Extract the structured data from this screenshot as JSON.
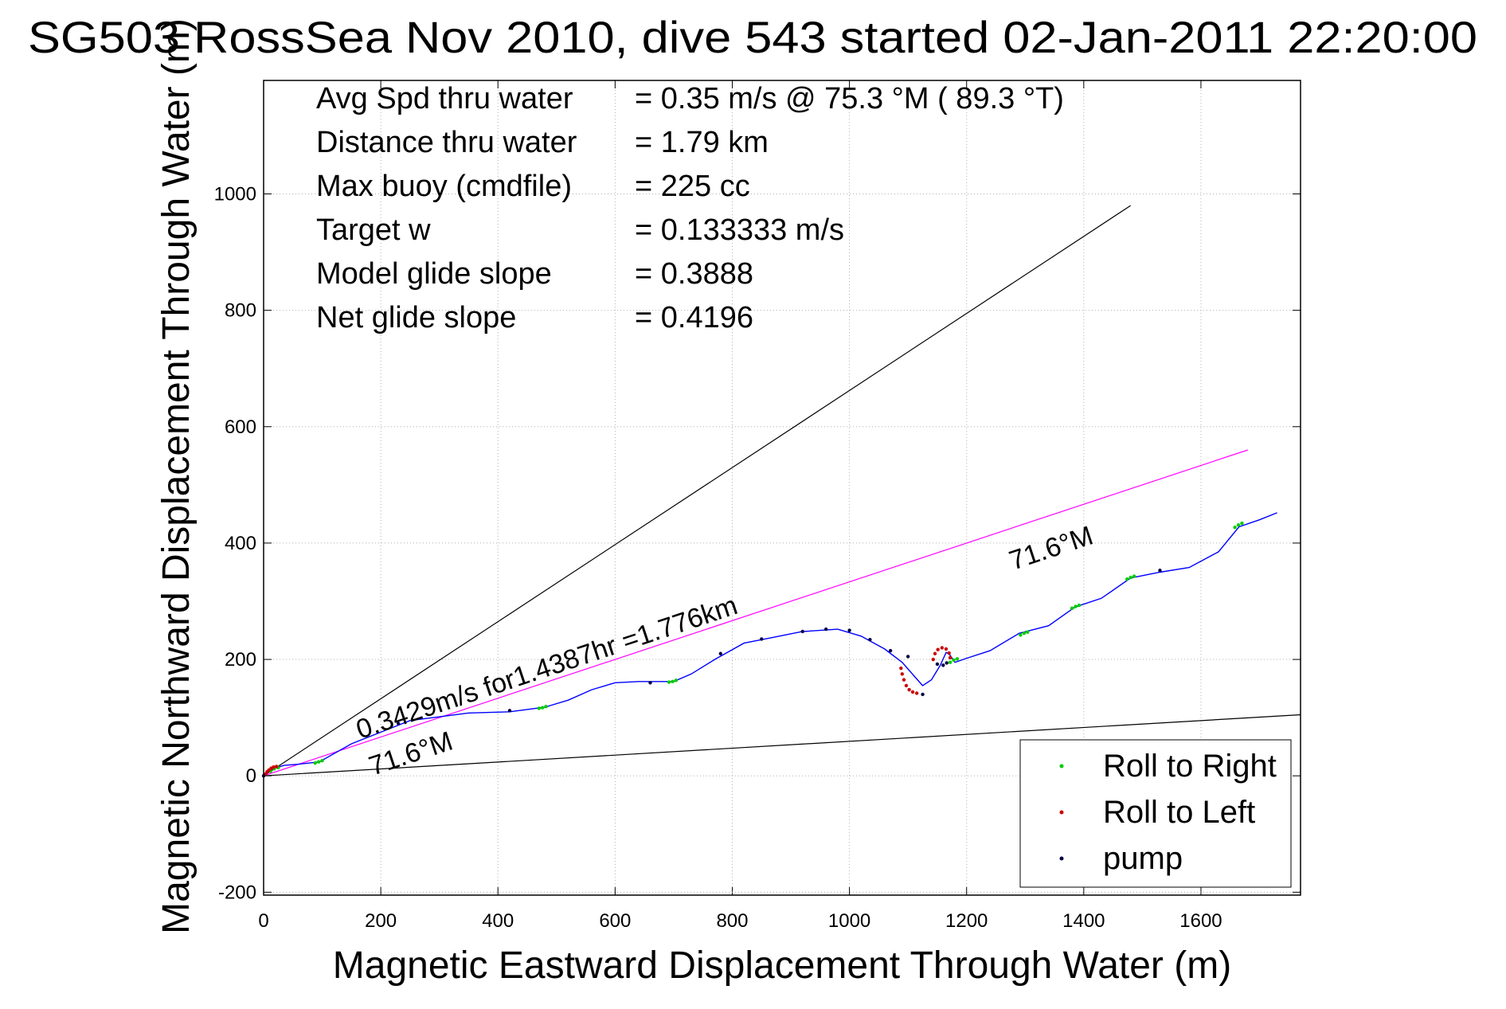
{
  "chart_data": {
    "type": "line",
    "title": "SG503 RossSea Nov 2010, dive 543 started 02-Jan-2011 22:20:00",
    "xlabel": "Magnetic Eastward Displacement Through Water (m)",
    "ylabel": "Magnetic Northward Displacement Through Water (m)",
    "xlim": [
      0,
      1770
    ],
    "ylim": [
      -205,
      1195
    ],
    "xticks": [
      0,
      200,
      400,
      600,
      800,
      1000,
      1200,
      1400,
      1600
    ],
    "yticks": [
      -200,
      0,
      200,
      400,
      600,
      800,
      1000
    ],
    "grid": true,
    "stats": [
      {
        "label": "Avg Spd thru water",
        "value": "=  0.35 m/s @  75.3 °M ( 89.3 °T)"
      },
      {
        "label": "Distance thru water",
        "value": "=  1.79 km"
      },
      {
        "label": "Max buoy (cmdfile)",
        "value": "= 225 cc"
      },
      {
        "label": "Target w",
        "value": "= 0.133333 m/s"
      },
      {
        "label": "Model glide slope",
        "value": "= 0.3888"
      },
      {
        "label": "Net glide slope",
        "value": "= 0.4196"
      }
    ],
    "annotations": {
      "net_line": "0.3429m/s for1.4387hr =1.776km",
      "lower_heading": "71.6°M",
      "upper_heading": "71.6°M"
    },
    "reference_lines": [
      {
        "x": [
          0,
          1480
        ],
        "y": [
          0,
          980
        ],
        "color": "#000000"
      },
      {
        "x": [
          0,
          1770
        ],
        "y": [
          0,
          105
        ],
        "color": "#000000"
      },
      {
        "x": [
          0,
          1680
        ],
        "y": [
          0,
          560
        ],
        "color": "#ff00ff"
      }
    ],
    "track": {
      "color": "#0000ff",
      "x": [
        0,
        15,
        35,
        60,
        95,
        150,
        250,
        350,
        420,
        480,
        520,
        560,
        600,
        640,
        700,
        730,
        770,
        820,
        870,
        920,
        980,
        1020,
        1060,
        1090,
        1110,
        1125,
        1140,
        1155,
        1165,
        1170,
        1180,
        1200,
        1240,
        1290,
        1340,
        1385,
        1430,
        1480,
        1530,
        1580,
        1630,
        1665,
        1700,
        1730
      ],
      "y": [
        0,
        12,
        18,
        20,
        24,
        55,
        95,
        108,
        110,
        118,
        130,
        148,
        160,
        162,
        162,
        175,
        200,
        228,
        238,
        248,
        252,
        240,
        218,
        195,
        172,
        155,
        165,
        190,
        212,
        210,
        195,
        202,
        215,
        245,
        258,
        290,
        305,
        340,
        350,
        358,
        385,
        428,
        440,
        452
      ]
    },
    "series": [
      {
        "name": "Roll to Right",
        "color": "#00cc00",
        "points": [
          [
            12,
            8
          ],
          [
            18,
            12
          ],
          [
            25,
            14
          ],
          [
            88,
            22
          ],
          [
            94,
            24
          ],
          [
            100,
            26
          ],
          [
            470,
            116
          ],
          [
            476,
            117
          ],
          [
            482,
            119
          ],
          [
            692,
            161
          ],
          [
            698,
            162
          ],
          [
            704,
            164
          ],
          [
            1172,
            195
          ],
          [
            1178,
            199
          ],
          [
            1184,
            201
          ],
          [
            1292,
            242
          ],
          [
            1298,
            245
          ],
          [
            1304,
            247
          ],
          [
            1380,
            288
          ],
          [
            1386,
            291
          ],
          [
            1392,
            293
          ],
          [
            1474,
            338
          ],
          [
            1480,
            341
          ],
          [
            1486,
            343
          ],
          [
            1658,
            427
          ],
          [
            1664,
            431
          ],
          [
            1670,
            434
          ]
        ]
      },
      {
        "name": "Roll to Left",
        "color": "#cc0000",
        "points": [
          [
            3,
            3
          ],
          [
            6,
            7
          ],
          [
            9,
            10
          ],
          [
            13,
            13
          ],
          [
            17,
            15
          ],
          [
            22,
            16
          ],
          [
            1088,
            185
          ],
          [
            1090,
            175
          ],
          [
            1093,
            165
          ],
          [
            1097,
            155
          ],
          [
            1102,
            148
          ],
          [
            1108,
            144
          ],
          [
            1115,
            142
          ],
          [
            1143,
            200
          ],
          [
            1146,
            210
          ],
          [
            1151,
            217
          ],
          [
            1158,
            220
          ],
          [
            1165,
            218
          ],
          [
            1170,
            211
          ],
          [
            1172,
            203
          ]
        ]
      },
      {
        "name": "pump",
        "color": "#000044",
        "points": [
          [
            0,
            0
          ],
          [
            230,
            90
          ],
          [
            420,
            112
          ],
          [
            660,
            160
          ],
          [
            780,
            210
          ],
          [
            850,
            235
          ],
          [
            920,
            248
          ],
          [
            960,
            252
          ],
          [
            1000,
            250
          ],
          [
            1035,
            234
          ],
          [
            1070,
            215
          ],
          [
            1100,
            205
          ],
          [
            1125,
            140
          ],
          [
            1150,
            192
          ],
          [
            1160,
            190
          ],
          [
            1166,
            194
          ],
          [
            1530,
            353
          ]
        ]
      }
    ]
  }
}
